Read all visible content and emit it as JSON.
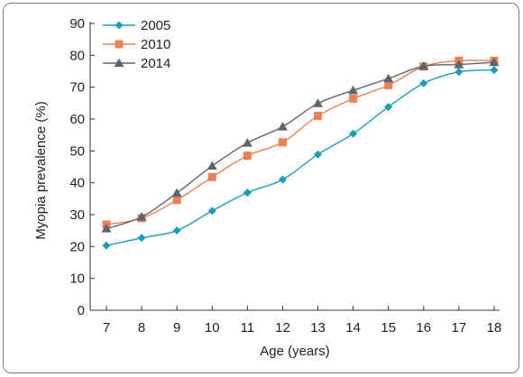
{
  "chart_data": {
    "type": "line",
    "title": "",
    "xlabel": "Age (years)",
    "ylabel": "Myopia prevalence (%)",
    "xlim": [
      7,
      18
    ],
    "ylim": [
      0,
      90
    ],
    "xticks": [
      7,
      8,
      9,
      10,
      11,
      12,
      13,
      14,
      15,
      16,
      17,
      18
    ],
    "yticks": [
      0,
      10,
      20,
      30,
      40,
      50,
      60,
      70,
      80,
      90
    ],
    "grid": false,
    "legend_position": "top-left",
    "x": [
      7,
      8,
      9,
      10,
      11,
      12,
      13,
      14,
      15,
      16,
      17,
      18
    ],
    "series": [
      {
        "name": "2005",
        "color": "#1a9bc1",
        "marker": "diamond",
        "values": [
          20.3,
          22.7,
          25.0,
          31.2,
          36.9,
          41.0,
          48.9,
          55.4,
          63.8,
          71.2,
          74.8,
          75.4
        ]
      },
      {
        "name": "2010",
        "color": "#f07f55",
        "marker": "square",
        "values": [
          26.9,
          28.9,
          34.6,
          41.8,
          48.5,
          52.7,
          61.0,
          66.4,
          70.6,
          76.5,
          78.3,
          78.3
        ]
      },
      {
        "name": "2014",
        "color": "#5a6570",
        "marker": "triangle",
        "values": [
          25.6,
          29.3,
          36.8,
          45.3,
          52.5,
          57.6,
          64.9,
          69.0,
          72.7,
          76.6,
          77.1,
          77.8
        ]
      }
    ]
  }
}
